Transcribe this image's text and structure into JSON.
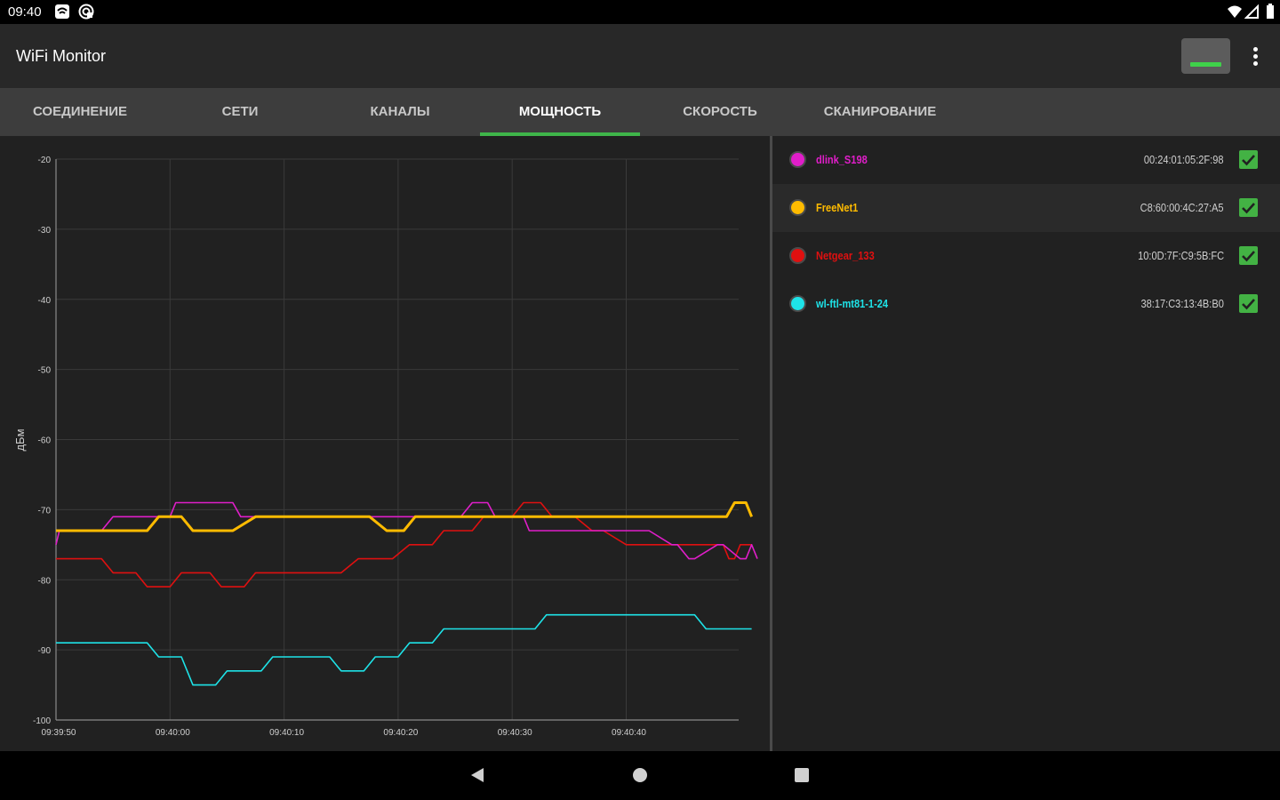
{
  "status_bar": {
    "time": "09:40",
    "icons": [
      "wifi-assist-icon",
      "sync-icon",
      "wifi-icon",
      "signal-icon",
      "battery-icon"
    ]
  },
  "app_bar": {
    "title": "WiFi Monitor",
    "action_icon": "signal-strength-indicator-icon",
    "overflow_icon": "more-vert-icon"
  },
  "tabs": [
    {
      "label": "СОЕДИНЕНИЕ",
      "active": false
    },
    {
      "label": "СЕТИ",
      "active": false
    },
    {
      "label": "КАНАЛЫ",
      "active": false
    },
    {
      "label": "МОЩНОСТЬ",
      "active": true
    },
    {
      "label": "СКОРОСТЬ",
      "active": false
    },
    {
      "label": "СКАНИРОВАНИЕ",
      "active": false
    }
  ],
  "colors": {
    "accent": "#3fb54a",
    "background": "#212121",
    "tab_bar": "#3d3d3d"
  },
  "networks": [
    {
      "name": "dlink_S198",
      "mac": "00:24:01:05:2F:98",
      "color": "#e01ec9",
      "checked": true
    },
    {
      "name": "FreeNet1",
      "mac": "C8:60:00:4C:27:A5",
      "color": "#ffbb00",
      "checked": true
    },
    {
      "name": "Netgear_133",
      "mac": "10:0D:7F:C9:5B:FC",
      "color": "#e01010",
      "checked": true
    },
    {
      "name": "wl-ftl-mt81-1-24",
      "mac": "38:17:C3:13:4B:B0",
      "color": "#1ee3e8",
      "checked": true
    }
  ],
  "chart_data": {
    "type": "line",
    "ylabel": "дБм",
    "xlabel": "",
    "ylim": [
      -100,
      -20
    ],
    "yticks": [
      -20,
      -30,
      -40,
      -50,
      -60,
      -70,
      -80,
      -90,
      -100
    ],
    "x_time_range": [
      "09:39:50",
      "09:40:50"
    ],
    "xticks": [
      "09:39:50",
      "09:40:00",
      "09:40:10",
      "09:40:20",
      "09:40:30",
      "09:40:40"
    ],
    "grid": true,
    "series": [
      {
        "name": "dlink_S198",
        "color": "#e01ec9",
        "x": [
          0,
          0.6,
          3,
          4,
          8,
          10,
          15,
          15.6,
          20,
          21,
          21.6,
          27.8,
          29,
          31,
          32.4,
          33.6,
          37,
          38.6,
          50,
          51,
          54,
          55,
          58,
          59,
          62,
          63,
          66,
          67,
          70,
          71,
          73,
          74,
          75,
          75.7,
          77,
          78,
          79,
          79.6,
          81,
          82,
          83,
          83.6,
          86,
          87,
          90,
          91,
          91.6,
          93,
          94,
          96,
          97,
          97.6,
          100,
          101,
          103,
          104,
          108,
          109,
          111,
          112,
          116,
          117,
          120,
          121,
          122,
          123
        ],
        "y": [
          -75,
          -73,
          -73,
          -73,
          -73,
          -71,
          -71,
          -71,
          -71,
          -69,
          -69,
          -69,
          -69,
          -69,
          -71,
          -71,
          -71,
          -71,
          -71,
          -71,
          -71,
          -71,
          -71,
          -71,
          -71,
          -71,
          -71,
          -71,
          -71,
          -71,
          -69,
          -69,
          -69,
          -69,
          -71,
          -71,
          -71,
          -71,
          -71,
          -71,
          -73,
          -73,
          -73,
          -73,
          -73,
          -73,
          -73,
          -73,
          -73,
          -73,
          -73,
          -73,
          -73,
          -73,
          -73,
          -73,
          -75,
          -75,
          -77,
          -77,
          -75,
          -75,
          -77,
          -77,
          -75,
          -77
        ]
      },
      {
        "name": "FreeNet1",
        "color": "#ffbb00",
        "x": [
          0,
          16,
          18,
          22,
          24,
          31,
          35,
          55,
          58,
          61,
          63,
          117.6,
          119,
          120,
          121,
          122
        ],
        "y": [
          -73,
          -73,
          -71,
          -71,
          -73,
          -73,
          -71,
          -71,
          -73,
          -73,
          -71,
          -71,
          -69,
          -69,
          -69,
          -71
        ]
      },
      {
        "name": "Netgear_133",
        "color": "#e01010",
        "x": [
          0,
          8,
          10,
          14,
          16,
          20,
          22,
          27,
          29,
          33,
          35,
          50,
          53,
          59,
          62,
          66,
          68,
          73,
          75,
          80,
          82,
          85,
          87,
          88.6,
          90,
          91,
          94,
          96,
          100,
          102,
          104,
          105,
          117,
          118,
          119,
          120,
          121,
          122
        ],
        "y": [
          -77,
          -77,
          -79,
          -79,
          -81,
          -81,
          -79,
          -79,
          -81,
          -81,
          -79,
          -79,
          -77,
          -77,
          -75,
          -75,
          -73,
          -73,
          -71,
          -71,
          -69,
          -69,
          -71,
          -71,
          -71,
          -71,
          -73,
          -73,
          -75,
          -75,
          -75,
          -75,
          -75,
          -77,
          -77,
          -75,
          -75,
          -75
        ]
      },
      {
        "name": "wl-ftl-mt81-1-24",
        "color": "#1ee3e8",
        "x": [
          0,
          16,
          18,
          22,
          24,
          28,
          30,
          36,
          38,
          48,
          50,
          54,
          56,
          60,
          62,
          66,
          68,
          84,
          86,
          112,
          114,
          116,
          118,
          122
        ],
        "y": [
          -89,
          -89,
          -91,
          -91,
          -95,
          -95,
          -93,
          -93,
          -91,
          -91,
          -93,
          -93,
          -91,
          -91,
          -89,
          -89,
          -87,
          -87,
          -85,
          -85,
          -87,
          -87,
          -87,
          -87
        ]
      }
    ]
  },
  "nav_bar": {
    "icons": [
      "back-icon",
      "home-icon",
      "recents-icon"
    ]
  }
}
